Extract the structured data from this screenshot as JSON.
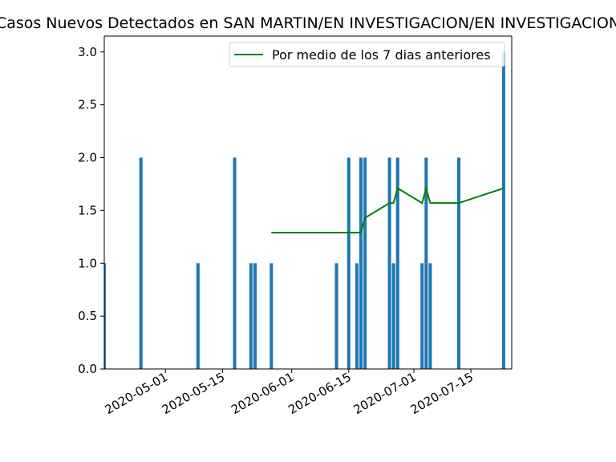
{
  "chart_data": {
    "type": "bar",
    "title": "Casos Nuevos Detectados en SAN MARTIN/EN INVESTIGACION/EN INVESTIGACION",
    "xlabel": "",
    "ylabel": "",
    "ylim": [
      0,
      3.15
    ],
    "xlim": [
      "2020-04-16",
      "2020-07-25"
    ],
    "y_ticks": [
      "0.0",
      "0.5",
      "1.0",
      "1.5",
      "2.0",
      "2.5",
      "3.0"
    ],
    "x_ticks": [
      "2020-05-01",
      "2020-05-15",
      "2020-06-01",
      "2020-06-15",
      "2020-07-01",
      "2020-07-15"
    ],
    "grid": false,
    "legend_position": "top-right",
    "colors": {
      "bars": "#1f77b4",
      "line": "#008000"
    },
    "series": [
      {
        "type": "bar",
        "x": [
          "2020-04-16",
          "2020-04-25",
          "2020-05-09",
          "2020-05-18",
          "2020-05-22",
          "2020-05-23",
          "2020-05-27",
          "2020-06-12",
          "2020-06-15",
          "2020-06-17",
          "2020-06-18",
          "2020-06-19",
          "2020-06-25",
          "2020-06-26",
          "2020-06-27",
          "2020-07-03",
          "2020-07-04",
          "2020-07-05",
          "2020-07-12",
          "2020-07-23"
        ],
        "values": [
          1,
          2,
          1,
          2,
          1,
          1,
          1,
          1,
          2,
          1,
          2,
          2,
          2,
          1,
          2,
          1,
          2,
          1,
          2,
          3
        ]
      },
      {
        "type": "line",
        "name": "Por medio de los 7 dias anteriores",
        "x": [
          "2020-05-27",
          "2020-06-18",
          "2020-06-19",
          "2020-06-25",
          "2020-06-26",
          "2020-06-27",
          "2020-07-03",
          "2020-07-04",
          "2020-07-05",
          "2020-07-12",
          "2020-07-23"
        ],
        "values": [
          1.29,
          1.29,
          1.43,
          1.57,
          1.57,
          1.71,
          1.57,
          1.71,
          1.57,
          1.57,
          1.71
        ]
      }
    ]
  }
}
